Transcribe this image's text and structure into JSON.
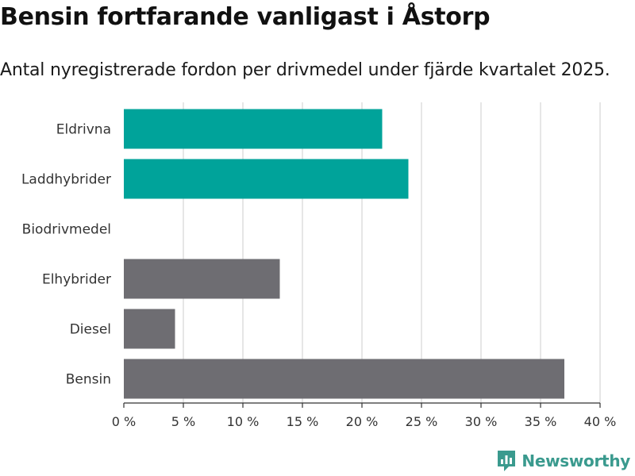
{
  "header": {
    "title": "Bensin fortfarande vanligast i Åstorp",
    "subtitle": "Antal nyregistrerade fordon per drivmedel under fjärde kvartalet 2025."
  },
  "colors": {
    "teal": "#00a39a",
    "gray": "#6e6d72",
    "grid": "#dddddd",
    "axis": "#333333",
    "logo": "#3a9a8e"
  },
  "chart_data": {
    "type": "bar",
    "orientation": "horizontal",
    "title": "Bensin fortfarande vanligast i Åstorp",
    "subtitle": "Antal nyregistrerade fordon per drivmedel under fjärde kvartalet 2025.",
    "xlabel": "",
    "ylabel": "",
    "xlim": [
      0,
      40
    ],
    "grid": true,
    "categories": [
      "Eldrivna",
      "Laddhybrider",
      "Biodrivmedel",
      "Elhybrider",
      "Diesel",
      "Bensin"
    ],
    "values": [
      21.7,
      23.9,
      0,
      13.1,
      4.3,
      37.0
    ],
    "bar_colors": [
      "#00a39a",
      "#00a39a",
      "#00a39a",
      "#6e6d72",
      "#6e6d72",
      "#6e6d72"
    ],
    "x_ticks": [
      0,
      5,
      10,
      15,
      20,
      25,
      30,
      35,
      40
    ],
    "x_tick_labels": [
      "0 %",
      "5 %",
      "10 %",
      "15 %",
      "20 %",
      "25 %",
      "30 %",
      "35 %",
      "40 %"
    ]
  },
  "footer": {
    "logo_text": "Newsworthy",
    "logo_icon": "bar-chart-speech-bubble-icon"
  }
}
